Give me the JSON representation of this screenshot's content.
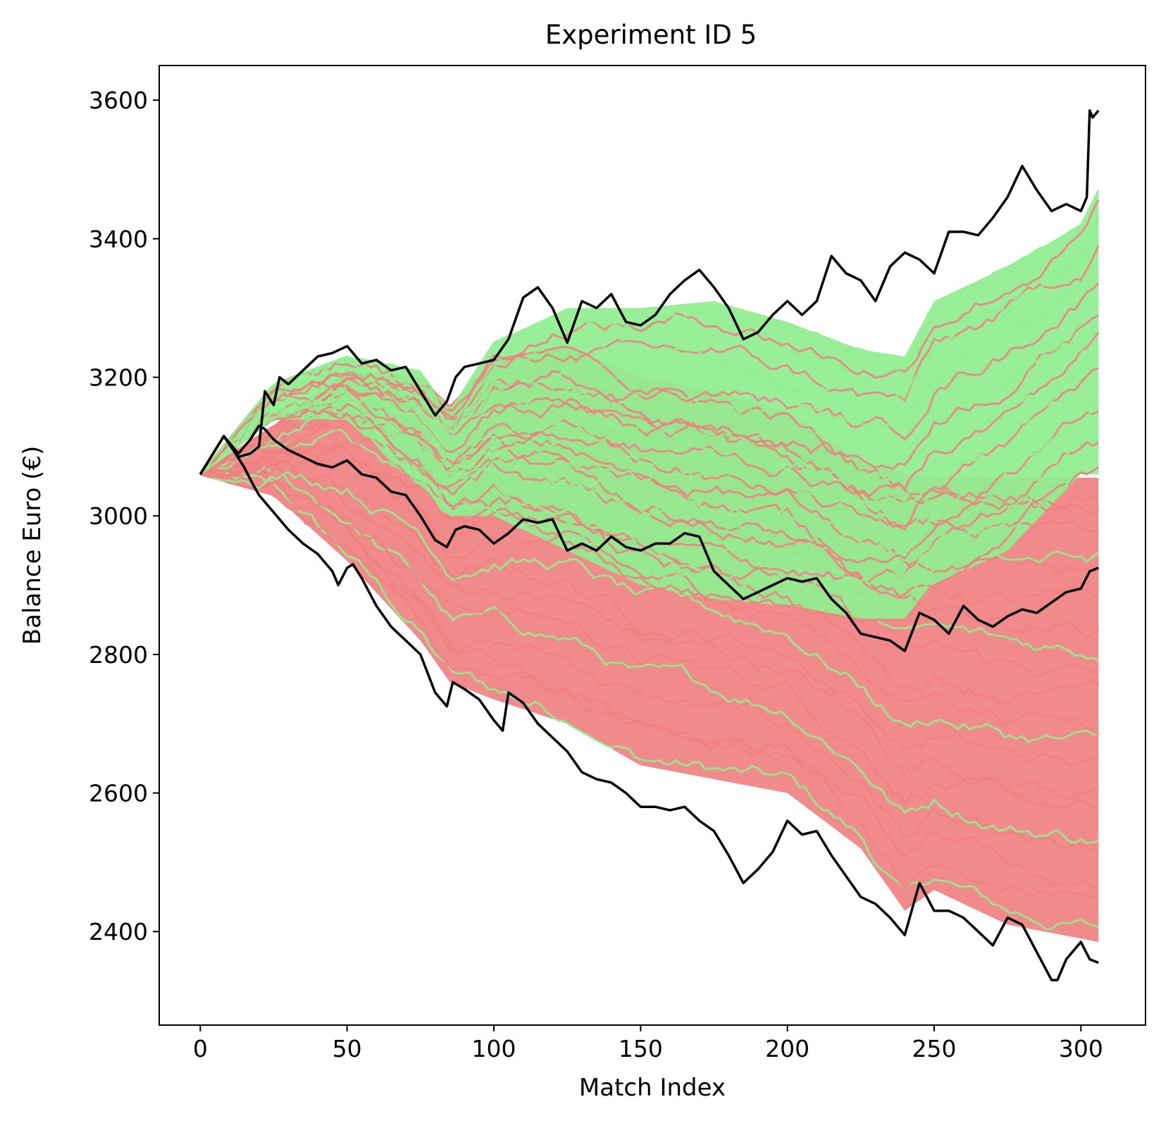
{
  "chart_data": {
    "type": "line",
    "title": "Experiment ID 5",
    "xlabel": "Match Index",
    "ylabel": "Balance Euro (€)",
    "xlim": [
      -14,
      322
    ],
    "ylim": [
      2265,
      3650
    ],
    "x_ticks": [
      0,
      50,
      100,
      150,
      200,
      250,
      300
    ],
    "y_ticks": [
      2400,
      2600,
      2800,
      3000,
      3200,
      3400,
      3600
    ],
    "grid": false,
    "legend": "none",
    "colors": {
      "profit_runs": "#90ee90",
      "loss_runs": "#f08080",
      "envelope": "#000000"
    },
    "simulation_bands": [
      {
        "category": "loss",
        "color": "#f08080",
        "x": [
          0,
          25,
          50,
          75,
          85,
          100,
          125,
          150,
          175,
          200,
          225,
          240,
          250,
          275,
          300,
          306
        ],
        "lower": [
          3060,
          3030,
          2935,
          2820,
          2760,
          2735,
          2700,
          2640,
          2620,
          2600,
          2520,
          2430,
          2460,
          2410,
          2390,
          2385
        ],
        "upper": [
          3060,
          3130,
          3210,
          3200,
          3160,
          3225,
          3245,
          3200,
          3180,
          3150,
          3080,
          3060,
          3055,
          3055,
          3055,
          3055
        ]
      },
      {
        "category": "profit",
        "color": "#90ee90",
        "x": [
          0,
          25,
          50,
          75,
          85,
          100,
          125,
          150,
          175,
          200,
          225,
          240,
          250,
          275,
          300,
          306
        ],
        "lower": [
          3060,
          3140,
          3140,
          3040,
          3000,
          3000,
          2950,
          2900,
          2880,
          2870,
          2850,
          2850,
          2900,
          2950,
          3060,
          3060
        ],
        "upper": [
          3060,
          3190,
          3230,
          3210,
          3150,
          3250,
          3300,
          3300,
          3310,
          3280,
          3240,
          3230,
          3310,
          3360,
          3420,
          3470
        ]
      }
    ],
    "series": [
      {
        "role": "max",
        "color": "#000000",
        "x": [
          0,
          8,
          13,
          17,
          20,
          22,
          25,
          27,
          30,
          35,
          40,
          45,
          50,
          55,
          60,
          65,
          70,
          75,
          80,
          84,
          87,
          90,
          95,
          100,
          105,
          110,
          115,
          120,
          125,
          130,
          135,
          140,
          145,
          150,
          155,
          160,
          165,
          170,
          175,
          180,
          185,
          190,
          195,
          200,
          205,
          210,
          215,
          220,
          225,
          230,
          235,
          240,
          245,
          250,
          255,
          260,
          265,
          270,
          275,
          280,
          285,
          290,
          295,
          300,
          302,
          303,
          304,
          306
        ],
        "y": [
          3060,
          3115,
          3085,
          3090,
          3100,
          3180,
          3160,
          3200,
          3190,
          3210,
          3230,
          3235,
          3245,
          3220,
          3225,
          3210,
          3215,
          3180,
          3145,
          3165,
          3200,
          3215,
          3220,
          3225,
          3255,
          3315,
          3330,
          3300,
          3250,
          3310,
          3300,
          3320,
          3280,
          3275,
          3290,
          3320,
          3340,
          3355,
          3330,
          3300,
          3255,
          3265,
          3290,
          3310,
          3290,
          3310,
          3375,
          3350,
          3340,
          3310,
          3360,
          3380,
          3370,
          3350,
          3410,
          3410,
          3405,
          3430,
          3460,
          3505,
          3470,
          3440,
          3450,
          3440,
          3460,
          3585,
          3575,
          3585
        ]
      },
      {
        "role": "median",
        "color": "#000000",
        "x": [
          0,
          8,
          13,
          17,
          20,
          22,
          25,
          30,
          35,
          40,
          45,
          50,
          55,
          60,
          65,
          70,
          75,
          80,
          84,
          87,
          90,
          95,
          100,
          105,
          110,
          115,
          120,
          125,
          130,
          135,
          140,
          145,
          150,
          155,
          160,
          165,
          170,
          175,
          180,
          185,
          190,
          195,
          200,
          205,
          210,
          215,
          220,
          225,
          230,
          235,
          240,
          245,
          250,
          255,
          260,
          265,
          270,
          275,
          280,
          285,
          290,
          295,
          300,
          303,
          306
        ],
        "y": [
          3060,
          3115,
          3090,
          3110,
          3130,
          3125,
          3110,
          3095,
          3085,
          3075,
          3070,
          3080,
          3060,
          3055,
          3035,
          3030,
          3000,
          2965,
          2955,
          2980,
          2985,
          2980,
          2960,
          2975,
          2995,
          2990,
          2995,
          2950,
          2960,
          2950,
          2970,
          2955,
          2950,
          2960,
          2960,
          2975,
          2970,
          2920,
          2900,
          2880,
          2890,
          2900,
          2910,
          2905,
          2910,
          2880,
          2860,
          2830,
          2825,
          2820,
          2805,
          2860,
          2850,
          2830,
          2870,
          2850,
          2840,
          2855,
          2865,
          2860,
          2875,
          2890,
          2895,
          2920,
          2925
        ]
      },
      {
        "role": "min",
        "color": "#000000",
        "x": [
          0,
          8,
          12,
          15,
          18,
          20,
          25,
          30,
          35,
          40,
          45,
          47,
          50,
          52,
          55,
          60,
          65,
          70,
          75,
          80,
          84,
          86,
          90,
          95,
          100,
          103,
          105,
          110,
          115,
          120,
          125,
          130,
          135,
          140,
          145,
          150,
          155,
          160,
          165,
          170,
          175,
          180,
          185,
          190,
          195,
          200,
          205,
          210,
          215,
          220,
          225,
          230,
          235,
          240,
          245,
          250,
          255,
          260,
          265,
          270,
          275,
          280,
          285,
          290,
          292,
          295,
          300,
          303,
          306
        ],
        "y": [
          3060,
          3115,
          3090,
          3070,
          3045,
          3030,
          3005,
          2980,
          2960,
          2945,
          2920,
          2900,
          2925,
          2930,
          2910,
          2870,
          2840,
          2820,
          2800,
          2745,
          2725,
          2760,
          2750,
          2735,
          2705,
          2690,
          2745,
          2730,
          2700,
          2680,
          2660,
          2630,
          2620,
          2615,
          2600,
          2580,
          2580,
          2575,
          2580,
          2560,
          2545,
          2510,
          2470,
          2490,
          2515,
          2560,
          2540,
          2545,
          2510,
          2480,
          2450,
          2440,
          2420,
          2395,
          2470,
          2430,
          2430,
          2420,
          2400,
          2380,
          2420,
          2410,
          2370,
          2330,
          2330,
          2360,
          2385,
          2360,
          2355
        ]
      }
    ]
  }
}
